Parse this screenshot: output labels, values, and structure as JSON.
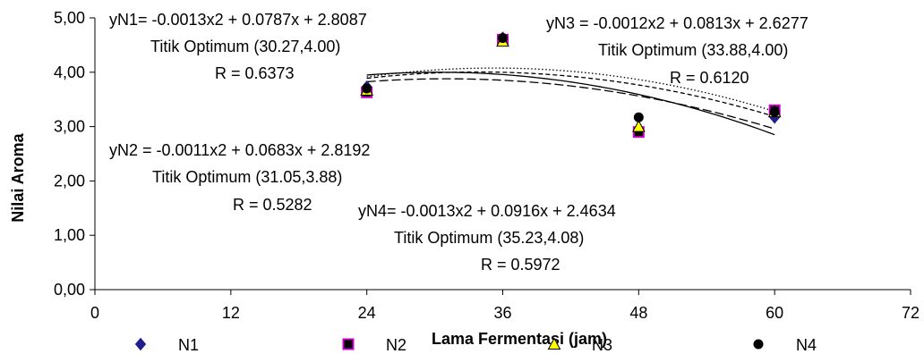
{
  "chart_data": {
    "type": "scatter",
    "xlabel": "Lama Fermentasi (jam)",
    "ylabel": "Nilai Aroma",
    "xlim": [
      0,
      72
    ],
    "ylim": [
      0,
      5
    ],
    "x_ticks": [
      0,
      12,
      24,
      36,
      48,
      60,
      72
    ],
    "x_tick_labels": [
      "0",
      "12",
      "24",
      "36",
      "48",
      "60",
      "72"
    ],
    "y_ticks": [
      0,
      1,
      2,
      3,
      4,
      5
    ],
    "y_tick_labels": [
      "0,00",
      "1,00",
      "2,00",
      "3,00",
      "4,00",
      "5,00"
    ],
    "grid": false,
    "legend_position": "bottom",
    "series": [
      {
        "name": "N1",
        "marker": "diamond",
        "color": "#1f1f8f",
        "fill": "#1f1f8f",
        "trend": "solid",
        "x": [
          24,
          36,
          48,
          60
        ],
        "y": [
          3.73,
          4.63,
          2.93,
          3.17
        ],
        "fit": [
          -0.0013,
          0.0787,
          2.8087
        ]
      },
      {
        "name": "N2",
        "marker": "square",
        "color": "#cc00cc",
        "fill": "#000000",
        "trend": "longdash",
        "x": [
          24,
          36,
          48,
          60
        ],
        "y": [
          3.63,
          4.6,
          2.9,
          3.3
        ],
        "fit": [
          -0.0011,
          0.0683,
          2.8192
        ]
      },
      {
        "name": "N3",
        "marker": "triangle",
        "color": "#000000",
        "fill": "#ffff00",
        "trend": "dash",
        "x": [
          24,
          36,
          48,
          60
        ],
        "y": [
          3.67,
          4.57,
          3.0,
          3.27
        ],
        "fit": [
          -0.0012,
          0.0813,
          2.6277
        ]
      },
      {
        "name": "N4",
        "marker": "circle",
        "color": "#000000",
        "fill": "#000000",
        "trend": "dot",
        "x": [
          24,
          36,
          48,
          60
        ],
        "y": [
          3.7,
          4.63,
          3.17,
          3.27
        ],
        "fit": [
          -0.0013,
          0.0916,
          2.4634
        ]
      }
    ],
    "annotations": [
      {
        "id": "n1",
        "lines": [
          "yN1= -0.0013x2 + 0.0787x + 2.8087",
          "Titik Optimum (30.27,4.00)",
          "R = 0.6373"
        ]
      },
      {
        "id": "n2",
        "lines": [
          "yN2 = -0.0011x2 + 0.0683x + 2.8192",
          "Titik Optimum (31.05,3.88)",
          "R = 0.5282"
        ]
      },
      {
        "id": "n3",
        "lines": [
          "yN3 = -0.0012x2 + 0.0813x + 2.6277",
          "Titik Optimum (33.88,4.00)",
          "R = 0.6120"
        ]
      },
      {
        "id": "n4",
        "lines": [
          "yN4= -0.0013x2 + 0.0916x + 2.4634",
          "Titik Optimum (35.23,4.08)",
          "R = 0.5972"
        ]
      }
    ]
  }
}
